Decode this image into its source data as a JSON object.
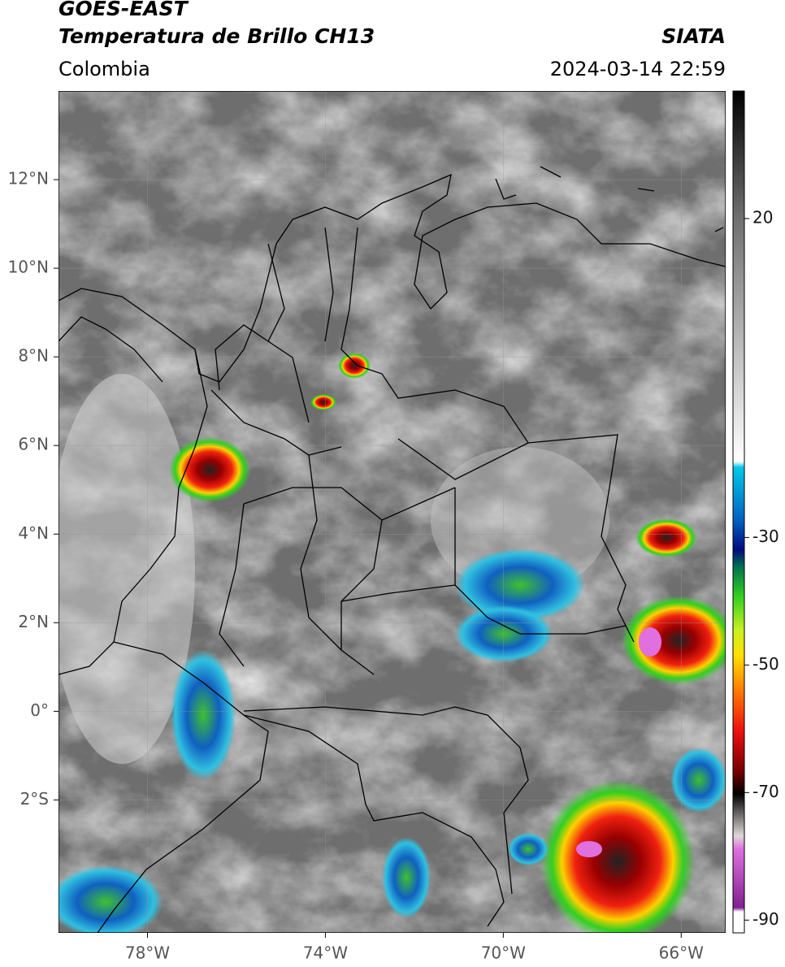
{
  "header": {
    "satellite": "GOES-EAST",
    "product": "Temperatura de Brillo CH13",
    "region": "Colombia",
    "source": "SIATA",
    "datetime": "2024-03-14 22:59"
  },
  "map": {
    "xlim": [
      -80,
      -65
    ],
    "ylim": [
      -5,
      14
    ],
    "yticks": [
      {
        "value": 12,
        "label": "12°N"
      },
      {
        "value": 10,
        "label": "10°N"
      },
      {
        "value": 8,
        "label": "8°N"
      },
      {
        "value": 6,
        "label": "6°N"
      },
      {
        "value": 4,
        "label": "4°N"
      },
      {
        "value": 2,
        "label": "2°N"
      },
      {
        "value": 0,
        "label": "0°"
      },
      {
        "value": -2,
        "label": "2°S"
      }
    ],
    "xticks": [
      {
        "value": -78,
        "label": "78°W"
      },
      {
        "value": -74,
        "label": "74°W"
      },
      {
        "value": -70,
        "label": "70°W"
      },
      {
        "value": -66,
        "label": "66°W"
      }
    ],
    "grid": true
  },
  "colorbar": {
    "lim": [
      -92,
      40
    ],
    "ticks": [
      20,
      -30,
      -50,
      -70,
      -90
    ]
  }
}
